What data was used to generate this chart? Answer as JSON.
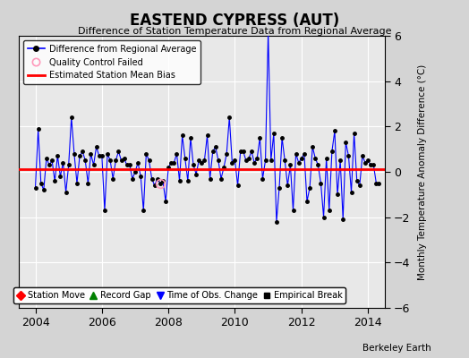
{
  "title": "EASTEND CYPRESS (AUT)",
  "subtitle": "Difference of Station Temperature Data from Regional Average",
  "ylabel": "Monthly Temperature Anomaly Difference (°C)",
  "xlim": [
    2003.5,
    2014.5
  ],
  "ylim": [
    -6,
    6
  ],
  "yticks": [
    -6,
    -4,
    -2,
    0,
    2,
    4,
    6
  ],
  "xticks": [
    2004,
    2006,
    2008,
    2010,
    2012,
    2014
  ],
  "bias_value": 0.1,
  "line_color": "#0000ff",
  "bias_color": "#ff0000",
  "fig_bg_color": "#d4d4d4",
  "ax_bg_color": "#e8e8e8",
  "watermark": "Berkeley Earth",
  "qc_fail_x": 2007.75,
  "qc_fail_y": -0.5,
  "time_series": [
    2004.0,
    2004.083,
    2004.167,
    2004.25,
    2004.333,
    2004.417,
    2004.5,
    2004.583,
    2004.667,
    2004.75,
    2004.833,
    2004.917,
    2005.0,
    2005.083,
    2005.167,
    2005.25,
    2005.333,
    2005.417,
    2005.5,
    2005.583,
    2005.667,
    2005.75,
    2005.833,
    2005.917,
    2006.0,
    2006.083,
    2006.167,
    2006.25,
    2006.333,
    2006.417,
    2006.5,
    2006.583,
    2006.667,
    2006.75,
    2006.833,
    2006.917,
    2007.0,
    2007.083,
    2007.167,
    2007.25,
    2007.333,
    2007.417,
    2007.5,
    2007.583,
    2007.667,
    2007.75,
    2007.833,
    2007.917,
    2008.0,
    2008.083,
    2008.167,
    2008.25,
    2008.333,
    2008.417,
    2008.5,
    2008.583,
    2008.667,
    2008.75,
    2008.833,
    2008.917,
    2009.0,
    2009.083,
    2009.167,
    2009.25,
    2009.333,
    2009.417,
    2009.5,
    2009.583,
    2009.667,
    2009.75,
    2009.833,
    2009.917,
    2010.0,
    2010.083,
    2010.167,
    2010.25,
    2010.333,
    2010.417,
    2010.5,
    2010.583,
    2010.667,
    2010.75,
    2010.833,
    2010.917,
    2011.0,
    2011.083,
    2011.167,
    2011.25,
    2011.333,
    2011.417,
    2011.5,
    2011.583,
    2011.667,
    2011.75,
    2011.833,
    2011.917,
    2012.0,
    2012.083,
    2012.167,
    2012.25,
    2012.333,
    2012.417,
    2012.5,
    2012.583,
    2012.667,
    2012.75,
    2012.833,
    2012.917,
    2013.0,
    2013.083,
    2013.167,
    2013.25,
    2013.333,
    2013.417,
    2013.5,
    2013.583,
    2013.667,
    2013.75,
    2013.833,
    2013.917,
    2014.0,
    2014.083,
    2014.167,
    2014.25,
    2014.333
  ],
  "values": [
    -0.7,
    1.9,
    -0.5,
    -0.8,
    0.6,
    0.3,
    0.5,
    -0.4,
    0.7,
    -0.2,
    0.4,
    -0.9,
    0.3,
    2.4,
    0.8,
    -0.5,
    0.7,
    0.9,
    0.5,
    -0.5,
    0.8,
    0.3,
    1.1,
    0.7,
    0.7,
    -1.7,
    0.8,
    0.5,
    -0.3,
    0.5,
    0.9,
    0.5,
    0.6,
    0.3,
    0.3,
    -0.3,
    0.0,
    0.4,
    -0.2,
    -1.7,
    0.8,
    0.5,
    -0.3,
    -0.6,
    -0.3,
    -0.5,
    -0.4,
    -1.3,
    0.2,
    0.4,
    0.4,
    0.8,
    -0.4,
    1.6,
    0.6,
    -0.4,
    1.5,
    0.3,
    -0.1,
    0.5,
    0.4,
    0.5,
    1.6,
    -0.3,
    0.9,
    1.1,
    0.5,
    -0.3,
    0.2,
    0.8,
    2.4,
    0.4,
    0.5,
    -0.6,
    0.9,
    0.9,
    0.5,
    0.6,
    0.9,
    0.4,
    0.6,
    1.5,
    -0.3,
    0.5,
    6.2,
    0.5,
    1.7,
    -2.2,
    -0.7,
    1.5,
    0.5,
    -0.6,
    0.3,
    -1.7,
    0.8,
    0.4,
    0.6,
    0.8,
    -1.3,
    -0.7,
    1.1,
    0.6,
    0.3,
    -0.5,
    -2.0,
    0.6,
    -1.7,
    0.9,
    1.8,
    -1.0,
    0.5,
    -2.1,
    1.3,
    0.7,
    -0.9,
    1.7,
    -0.4,
    -0.6,
    0.7,
    0.4,
    0.5,
    0.3,
    0.3,
    -0.5,
    -0.5
  ]
}
